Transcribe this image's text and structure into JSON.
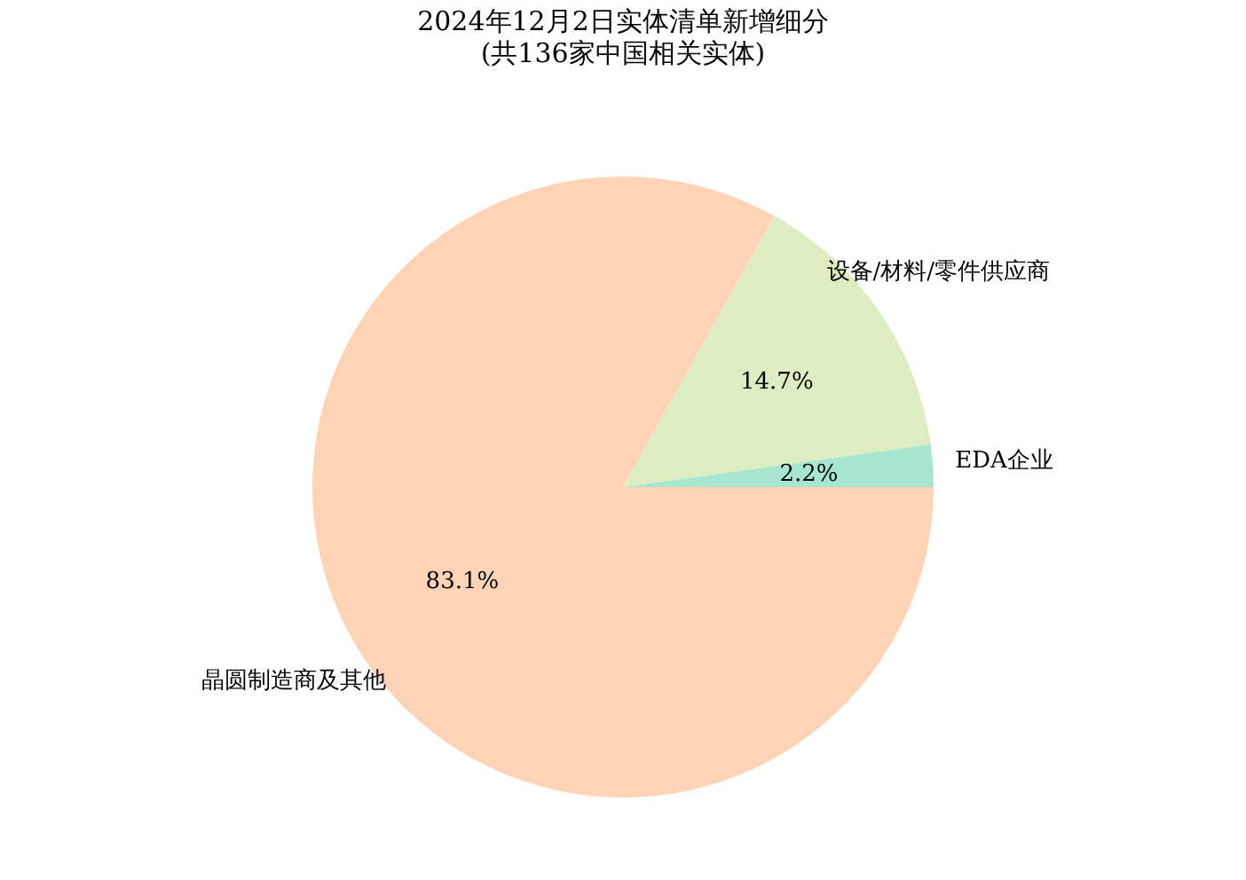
{
  "chart_data": {
    "type": "pie",
    "title": "2024年12月2日实体清单新增细分",
    "subtitle": "(共136家中国相关实体)",
    "categories": [
      "EDA企业",
      "设备/材料/零件供应商",
      "晶圆制造商及其他"
    ],
    "values": [
      2.2,
      14.7,
      83.1
    ],
    "colors": [
      "#a8e6cf",
      "#dcedc1",
      "#ffd3b6"
    ],
    "value_labels": [
      "2.2%",
      "14.7%",
      "83.1%"
    ]
  }
}
